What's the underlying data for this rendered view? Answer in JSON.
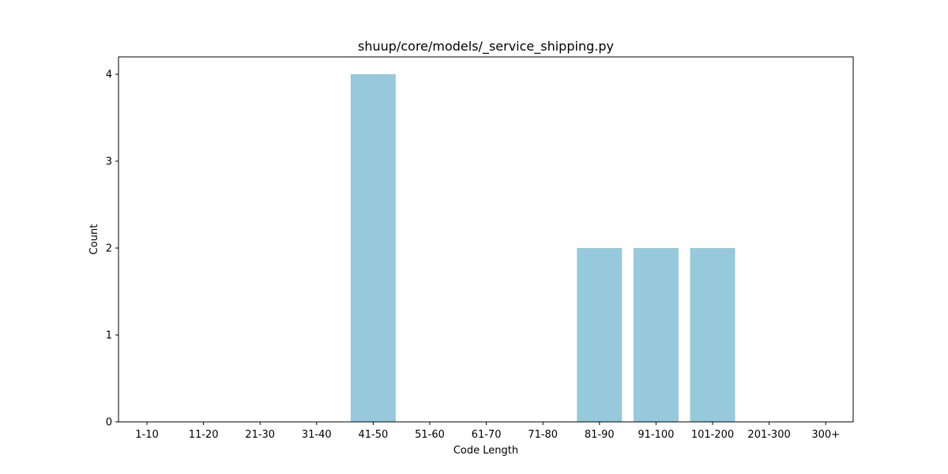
{
  "chart_data": {
    "type": "bar",
    "title": "shuup/core/models/_service_shipping.py",
    "xlabel": "Code Length",
    "ylabel": "Count",
    "categories": [
      "1-10",
      "11-20",
      "21-30",
      "31-40",
      "41-50",
      "51-60",
      "61-70",
      "71-80",
      "81-90",
      "91-100",
      "101-200",
      "201-300",
      "300+"
    ],
    "values": [
      0,
      0,
      0,
      0,
      4,
      0,
      0,
      0,
      2,
      2,
      2,
      0,
      0
    ],
    "ylim": [
      0,
      4.2
    ],
    "yticks": [
      "0",
      "1",
      "2",
      "3",
      "4"
    ],
    "bar_color": "#96c9dc",
    "grid": false,
    "legend": "none"
  }
}
